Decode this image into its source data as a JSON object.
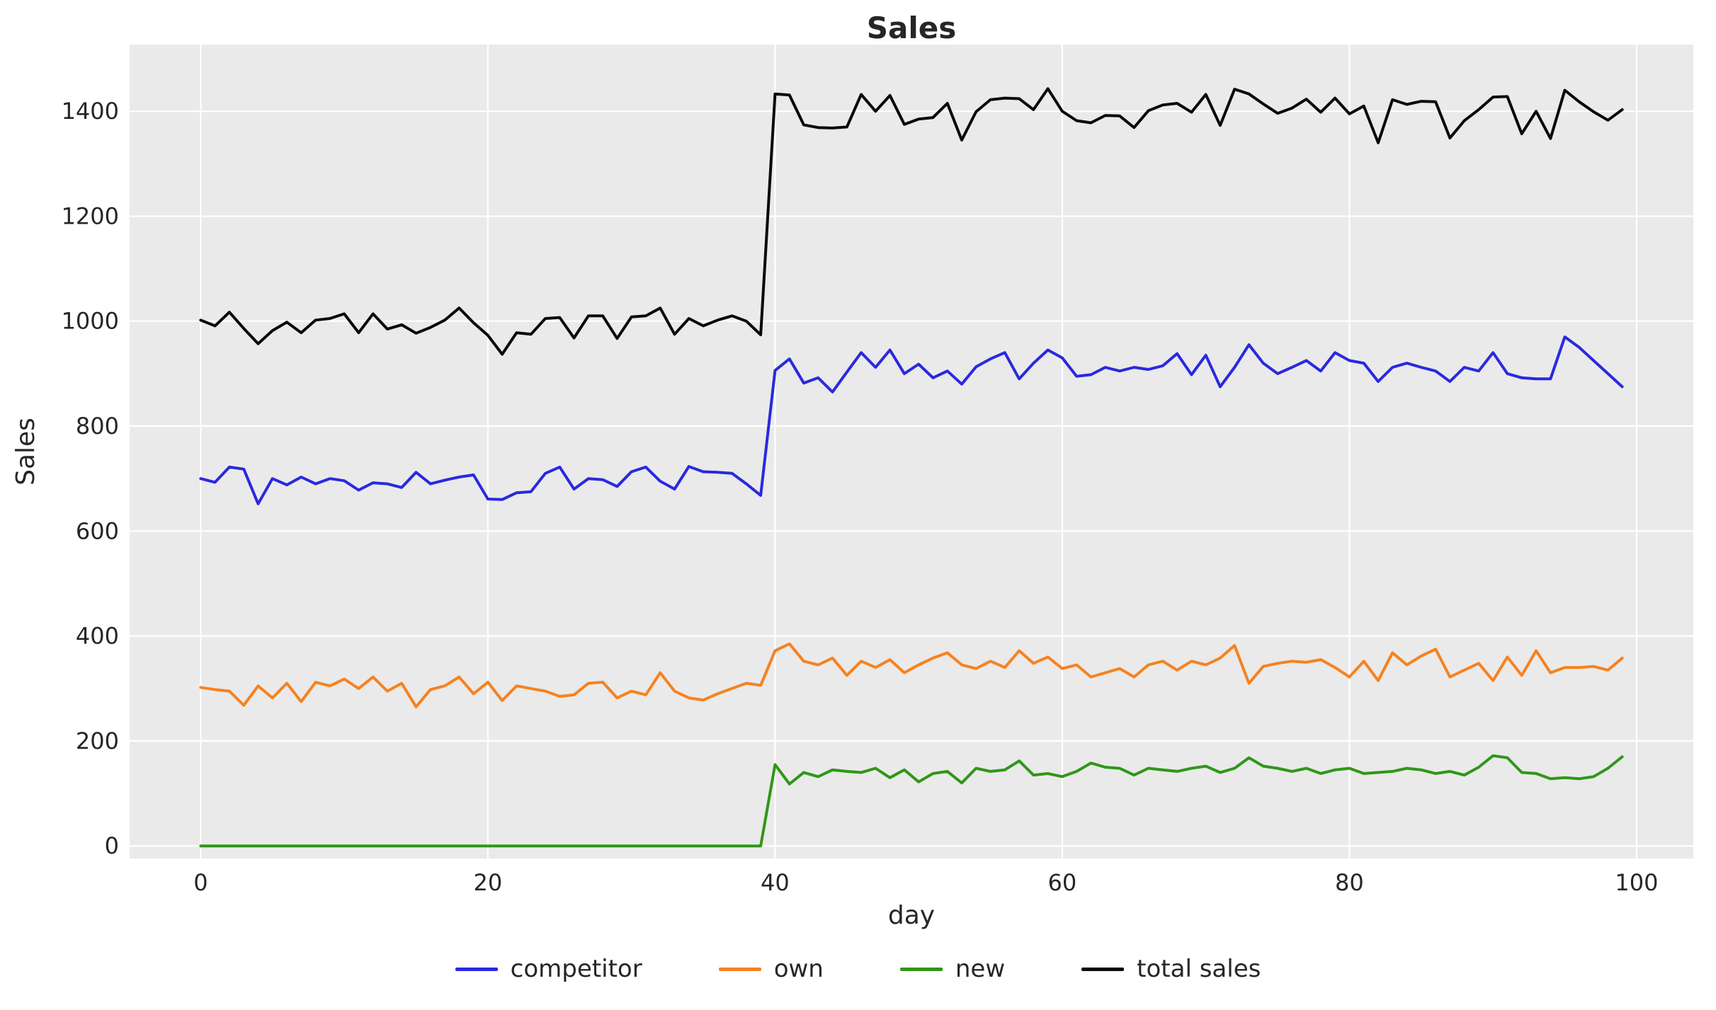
{
  "figure": {
    "title": "Sales",
    "xlabel": "day",
    "ylabel": "Sales"
  },
  "chart_data": {
    "type": "line",
    "title": "Sales",
    "xlabel": "day",
    "ylabel": "Sales",
    "grid": true,
    "legend_position": "bottom-center",
    "plot_background": "#eaeaea",
    "grid_color": "#ffffff",
    "text_color": "#262626",
    "x_ticks": [
      0,
      20,
      40,
      60,
      80,
      100
    ],
    "y_ticks": [
      0,
      200,
      400,
      600,
      800,
      1000,
      1200,
      1400
    ],
    "xlim": [
      -4.95,
      103.95
    ],
    "ylim": [
      -24,
      1527
    ],
    "x": [
      0,
      1,
      2,
      3,
      4,
      5,
      6,
      7,
      8,
      9,
      10,
      11,
      12,
      13,
      14,
      15,
      16,
      17,
      18,
      19,
      20,
      21,
      22,
      23,
      24,
      25,
      26,
      27,
      28,
      29,
      30,
      31,
      32,
      33,
      34,
      35,
      36,
      37,
      38,
      39,
      40,
      41,
      42,
      43,
      44,
      45,
      46,
      47,
      48,
      49,
      50,
      51,
      52,
      53,
      54,
      55,
      56,
      57,
      58,
      59,
      60,
      61,
      62,
      63,
      64,
      65,
      66,
      67,
      68,
      69,
      70,
      71,
      72,
      73,
      74,
      75,
      76,
      77,
      78,
      79,
      80,
      81,
      82,
      83,
      84,
      85,
      86,
      87,
      88,
      89,
      90,
      91,
      92,
      93,
      94,
      95,
      96,
      97,
      98,
      99
    ],
    "series": [
      {
        "name": "competitor",
        "color": "#2929e0",
        "values": [
          700,
          693,
          722,
          718,
          652,
          700,
          688,
          703,
          690,
          700,
          696,
          678,
          692,
          690,
          683,
          712,
          690,
          697,
          703,
          707,
          661,
          660,
          673,
          675,
          710,
          722,
          680,
          700,
          698,
          685,
          713,
          722,
          695,
          680,
          723,
          713,
          712,
          710,
          690,
          668,
          906,
          928,
          882,
          892,
          865,
          903,
          940,
          912,
          945,
          900,
          918,
          892,
          905,
          880,
          913,
          928,
          940,
          890,
          920,
          945,
          930,
          895,
          898,
          912,
          905,
          912,
          908,
          915,
          938,
          898,
          935,
          875,
          912,
          955,
          920,
          900,
          912,
          925,
          905,
          940,
          925,
          920,
          885,
          912,
          920,
          912,
          905,
          885,
          912,
          905,
          940,
          900,
          892,
          890,
          890,
          970,
          950,
          925,
          900,
          875
        ]
      },
      {
        "name": "own",
        "color": "#f6821f",
        "values": [
          302,
          298,
          295,
          268,
          305,
          282,
          310,
          275,
          312,
          305,
          318,
          300,
          322,
          295,
          310,
          265,
          298,
          305,
          322,
          290,
          312,
          277,
          305,
          300,
          295,
          285,
          288,
          310,
          312,
          282,
          295,
          288,
          330,
          295,
          282,
          278,
          290,
          300,
          310,
          306,
          372,
          385,
          352,
          345,
          358,
          325,
          352,
          340,
          355,
          330,
          345,
          358,
          368,
          345,
          338,
          352,
          340,
          372,
          348,
          360,
          338,
          345,
          322,
          330,
          338,
          322,
          345,
          352,
          335,
          352,
          345,
          358,
          382,
          310,
          342,
          348,
          352,
          350,
          355,
          340,
          322,
          352,
          315,
          368,
          345,
          362,
          375,
          322,
          335,
          348,
          315,
          360,
          325,
          372,
          330,
          340,
          340,
          342,
          335,
          358
        ]
      },
      {
        "name": "new",
        "color": "#2f9718",
        "values": [
          0,
          0,
          0,
          0,
          0,
          0,
          0,
          0,
          0,
          0,
          0,
          0,
          0,
          0,
          0,
          0,
          0,
          0,
          0,
          0,
          0,
          0,
          0,
          0,
          0,
          0,
          0,
          0,
          0,
          0,
          0,
          0,
          0,
          0,
          0,
          0,
          0,
          0,
          0,
          0,
          155,
          118,
          140,
          132,
          145,
          142,
          140,
          148,
          130,
          145,
          122,
          138,
          142,
          120,
          148,
          142,
          145,
          162,
          135,
          138,
          132,
          142,
          158,
          150,
          148,
          135,
          148,
          145,
          142,
          148,
          152,
          140,
          148,
          168,
          152,
          148,
          142,
          148,
          138,
          145,
          148,
          138,
          140,
          142,
          148,
          145,
          138,
          142,
          135,
          150,
          172,
          168,
          140,
          138,
          128,
          130,
          128,
          132,
          148,
          170
        ]
      },
      {
        "name": "total sales",
        "color": "#0a0a0a",
        "values": [
          1002,
          991,
          1017,
          986,
          957,
          982,
          998,
          978,
          1002,
          1005,
          1014,
          978,
          1014,
          985,
          993,
          977,
          988,
          1002,
          1025,
          997,
          973,
          937,
          978,
          975,
          1005,
          1007,
          968,
          1010,
          1010,
          967,
          1008,
          1010,
          1025,
          975,
          1005,
          991,
          1002,
          1010,
          1000,
          974,
          1433,
          1431,
          1374,
          1369,
          1368,
          1370,
          1432,
          1400,
          1430,
          1375,
          1385,
          1388,
          1415,
          1345,
          1399,
          1422,
          1425,
          1424,
          1403,
          1443,
          1400,
          1382,
          1378,
          1392,
          1391,
          1369,
          1401,
          1412,
          1415,
          1398,
          1432,
          1373,
          1442,
          1433,
          1414,
          1396,
          1406,
          1423,
          1398,
          1425,
          1395,
          1410,
          1340,
          1422,
          1413,
          1419,
          1418,
          1349,
          1382,
          1403,
          1427,
          1428,
          1357,
          1400,
          1348,
          1440,
          1418,
          1399,
          1383,
          1403
        ]
      }
    ]
  }
}
